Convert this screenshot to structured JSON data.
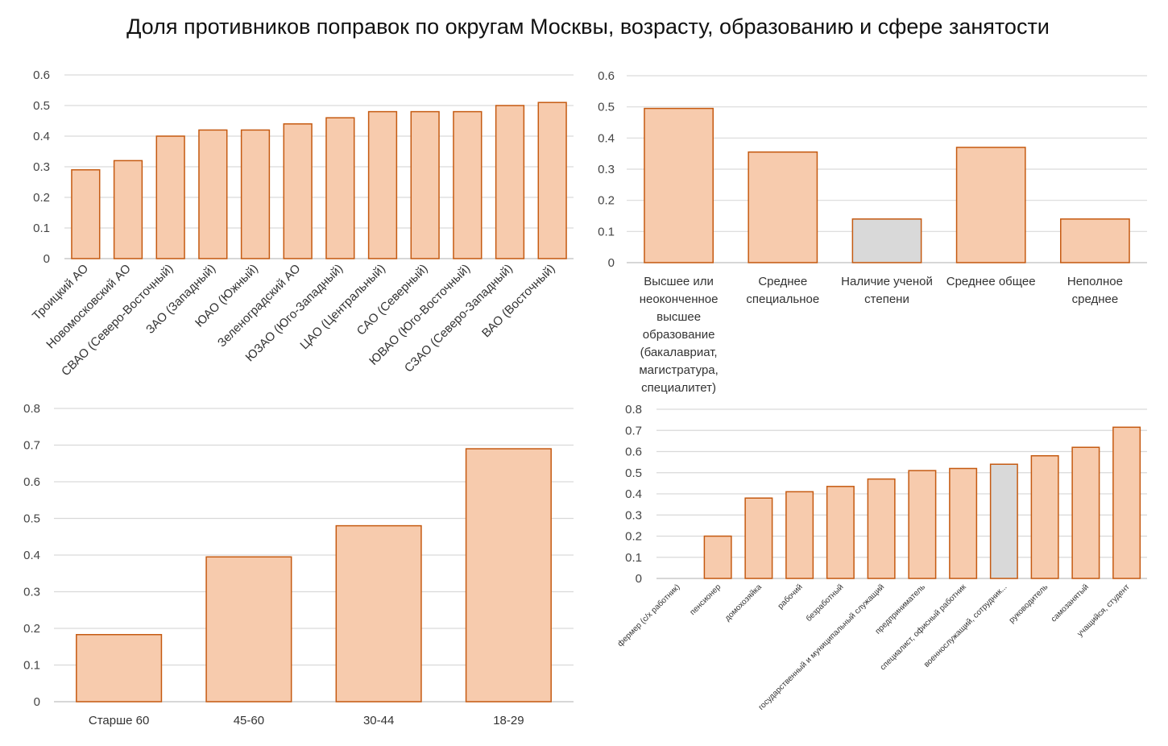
{
  "title": "Доля противников поправок по округам Москвы, возрасту, образованию и сфере занятости",
  "colors": {
    "bar_fill": "#f7cbad",
    "bar_stroke": "#c55a11",
    "bar_highlight_fill": "#d9d9d9",
    "grid": "#d9d9d9",
    "axis": "#bfbfbf"
  },
  "chart_data": [
    {
      "id": "districts",
      "type": "bar",
      "title": "",
      "xlabel": "",
      "ylabel": "",
      "ylim": [
        0,
        0.6
      ],
      "yticks": [
        "0",
        "0.1",
        "0.2",
        "0.3",
        "0.4",
        "0.5",
        "0.6"
      ],
      "categories": [
        "Троицкий АО",
        "Новомосковский АО",
        "СВАО (Северо-Восточный)",
        "ЗАО (Западный)",
        "ЮАО (Южный)",
        "Зеленоградский АО",
        "ЮЗАО (Юго-Западный)",
        "ЦАО (Центральный)",
        "САО (Северный)",
        "ЮВАО (Юго-Восточный)",
        "СЗАО (Северо-Западный)",
        "ВАО (Восточный)"
      ],
      "values": [
        0.29,
        0.32,
        0.4,
        0.42,
        0.42,
        0.44,
        0.46,
        0.48,
        0.48,
        0.48,
        0.5,
        0.51
      ],
      "highlight": [],
      "grid": true
    },
    {
      "id": "education",
      "type": "bar",
      "title": "",
      "xlabel": "",
      "ylabel": "",
      "ylim": [
        0,
        0.6
      ],
      "yticks": [
        "0",
        "0.1",
        "0.2",
        "0.3",
        "0.4",
        "0.5",
        "0.6"
      ],
      "categories": [
        [
          "Высшее или",
          "неоконченное",
          "высшее",
          "образование",
          "(бакалавриат,",
          "магистратура,",
          "специалитет)"
        ],
        [
          "Среднее",
          "специальное"
        ],
        [
          "Наличие ученой",
          "степени"
        ],
        [
          "Среднее общее"
        ],
        [
          "Неполное",
          "среднее"
        ]
      ],
      "values": [
        0.495,
        0.355,
        0.14,
        0.37,
        0.14
      ],
      "highlight": [
        2
      ],
      "grid": true
    },
    {
      "id": "age",
      "type": "bar",
      "title": "",
      "xlabel": "",
      "ylabel": "",
      "ylim": [
        0,
        0.8
      ],
      "yticks": [
        "0",
        "0.1",
        "0.2",
        "0.3",
        "0.4",
        "0.5",
        "0.6",
        "0.7",
        "0.8"
      ],
      "categories": [
        "Старше 60",
        "45-60",
        "30-44",
        "18-29"
      ],
      "values": [
        0.183,
        0.395,
        0.48,
        0.69
      ],
      "highlight": [],
      "grid": true
    },
    {
      "id": "occupation",
      "type": "bar",
      "title": "",
      "xlabel": "",
      "ylabel": "",
      "ylim": [
        0,
        0.8
      ],
      "yticks": [
        "0",
        "0.1",
        "0.2",
        "0.3",
        "0.4",
        "0.5",
        "0.6",
        "0.7",
        "0.8"
      ],
      "categories": [
        "фермер (с/х работник)",
        "пенсионер",
        "домохозяйка",
        "рабочий",
        "безработный",
        "государственный и муниципальный служащий",
        "предприниматель",
        "специалист, офисный работник",
        "военнослужащий, сотрудник...",
        "руководитель",
        "самозанятый",
        "учащийся, студент"
      ],
      "values": [
        0,
        0.2,
        0.38,
        0.41,
        0.435,
        0.47,
        0.51,
        0.52,
        0.54,
        0.58,
        0.62,
        0.715
      ],
      "highlight": [
        8
      ],
      "grid": true
    }
  ]
}
